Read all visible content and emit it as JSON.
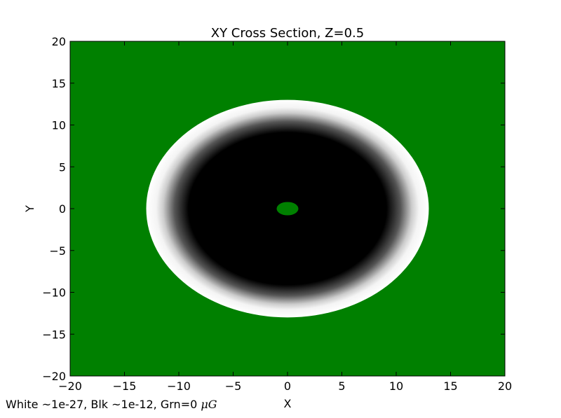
{
  "chart_data": {
    "type": "heatmap",
    "title": "XY Cross Section, Z=0.5",
    "xlabel": "X",
    "ylabel": "Y",
    "xlim": [
      -20,
      20
    ],
    "ylim": [
      -20,
      20
    ],
    "xticks": [
      "−20",
      "−15",
      "−10",
      "−5",
      "0",
      "5",
      "10",
      "15",
      "20"
    ],
    "yticks": [
      "20",
      "15",
      "10",
      "5",
      "0",
      "−5",
      "−10",
      "−15",
      "−20"
    ],
    "xtick_values": [
      -20,
      -15,
      -10,
      -5,
      0,
      5,
      10,
      15,
      20
    ],
    "ytick_values": [
      20,
      15,
      10,
      5,
      0,
      -5,
      -10,
      -15,
      -20
    ],
    "grid": false,
    "colors": {
      "background": "#008000",
      "high": "#000000",
      "low": "#ffffff",
      "zero": "#008000"
    },
    "regions": [
      {
        "name": "outer-zero",
        "fill": "zero",
        "extent": "beyond r≈13"
      },
      {
        "name": "gradient-ring",
        "fill": "low-to-high",
        "rx": 13,
        "ry": 13
      },
      {
        "name": "dark-core",
        "fill": "high",
        "rx": 9.3,
        "ry": 9.3
      },
      {
        "name": "center-zero",
        "fill": "zero",
        "cx": 0,
        "cy": 0,
        "rx": 1,
        "ry": 0.8
      }
    ]
  },
  "caption": {
    "prefix": "White ~1e-27, Blk ~1e-12, Grn=0 ",
    "unit": "μG"
  }
}
